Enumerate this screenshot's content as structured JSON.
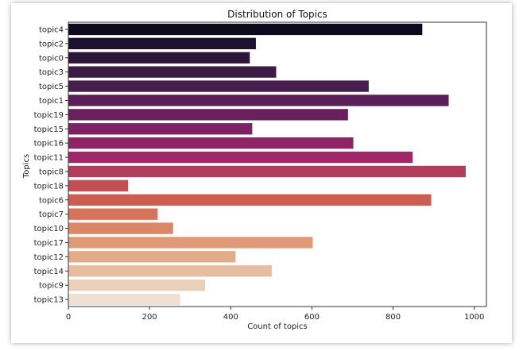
{
  "chart_data": {
    "type": "bar",
    "orientation": "horizontal",
    "title": "Distribution of Topics",
    "xlabel": "Count of topics",
    "ylabel": "Topics",
    "xlim": [
      0,
      1030
    ],
    "xticks": [
      0,
      200,
      400,
      600,
      800,
      1000
    ],
    "grid": false,
    "categories": [
      "topic4",
      "topic2",
      "topic0",
      "topic3",
      "topic5",
      "topic1",
      "topic19",
      "topic15",
      "topic16",
      "topic11",
      "topic8",
      "topic18",
      "topic6",
      "topic7",
      "topic10",
      "topic17",
      "topic12",
      "topic14",
      "topic9",
      "topic13"
    ],
    "values": [
      872,
      462,
      447,
      512,
      740,
      937,
      689,
      453,
      702,
      848,
      979,
      147,
      894,
      220,
      258,
      602,
      412,
      501,
      337,
      275
    ],
    "colors": [
      "#0d0a1d",
      "#1c1130",
      "#2b1538",
      "#3b1a44",
      "#4a1d4f",
      "#5a1f58",
      "#6b205e",
      "#7c2262",
      "#8e2466",
      "#a02868",
      "#b23c5c",
      "#c24d52",
      "#cc5d50",
      "#d5735b",
      "#da8667",
      "#de9a77",
      "#e2ac8a",
      "#e6bd9f",
      "#ebd0b9",
      "#f0e0d2"
    ]
  }
}
